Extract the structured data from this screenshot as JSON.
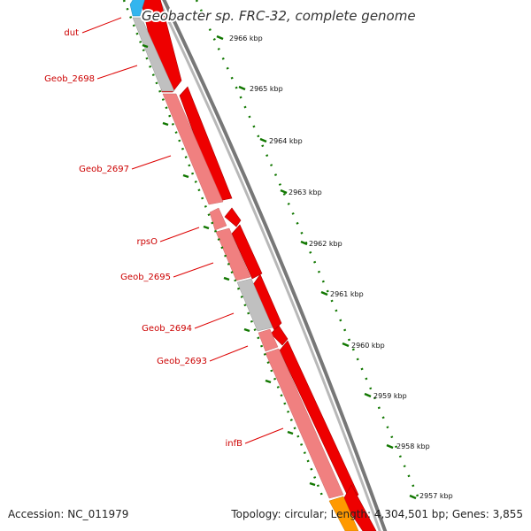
{
  "title": "Geobacter sp. FRC-32, complete genome",
  "footer": {
    "accession": "Accession: NC_011979",
    "topology": "Topology: circular; Length: 4,304,501 bp; Genes: 3,855"
  },
  "colors": {
    "forward_gene": "#ee0000",
    "reverse_gene": "#f08080",
    "hypothetical_gene": "#c0c0c0",
    "trna": "#33b5ee",
    "rrna": "#ff9900",
    "label": "#cc0000",
    "tick": "#117700",
    "backbone": "#888888"
  },
  "ticks": [
    {
      "label": "2966 kbp"
    },
    {
      "label": "2965 kbp"
    },
    {
      "label": "2964 kbp"
    },
    {
      "label": "2963 kbp"
    },
    {
      "label": "2962 kbp"
    },
    {
      "label": "2961 kbp"
    },
    {
      "label": "2960 kbp"
    },
    {
      "label": "2959 kbp"
    },
    {
      "label": "2958 kbp"
    },
    {
      "label": "2957 kbp"
    }
  ],
  "gene_labels": [
    {
      "name": "dut"
    },
    {
      "name": "Geob_2698"
    },
    {
      "name": "Geob_2697"
    },
    {
      "name": "rpsO"
    },
    {
      "name": "Geob_2695"
    },
    {
      "name": "Geob_2694"
    },
    {
      "name": "Geob_2693"
    },
    {
      "name": "infB"
    }
  ]
}
